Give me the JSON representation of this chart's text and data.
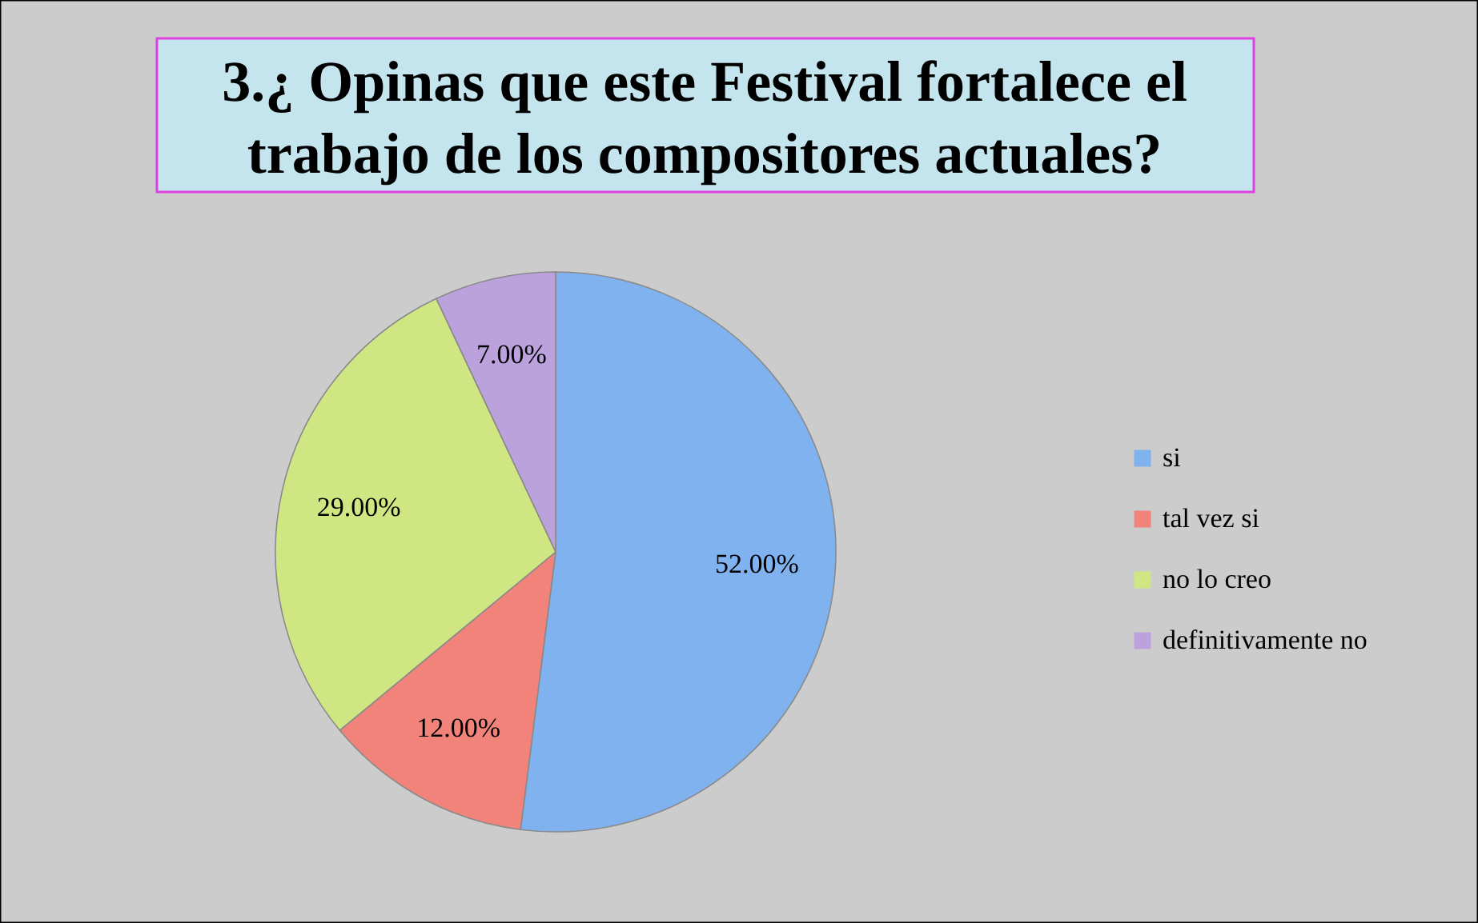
{
  "chart_data": {
    "type": "pie",
    "title": "3.¿ Opinas que este Festival fortalece el trabajo de los compositores actuales?",
    "categories": [
      "si",
      "tal vez si",
      "no lo creo",
      "definitivamente no"
    ],
    "values": [
      52,
      12,
      29,
      7
    ],
    "colors": [
      "#7fb2ee",
      "#f2837a",
      "#cfe683",
      "#bba2dd"
    ],
    "value_labels": [
      "52.00%",
      "12.00%",
      "29.00%",
      "7.00%"
    ],
    "legend": "right"
  }
}
